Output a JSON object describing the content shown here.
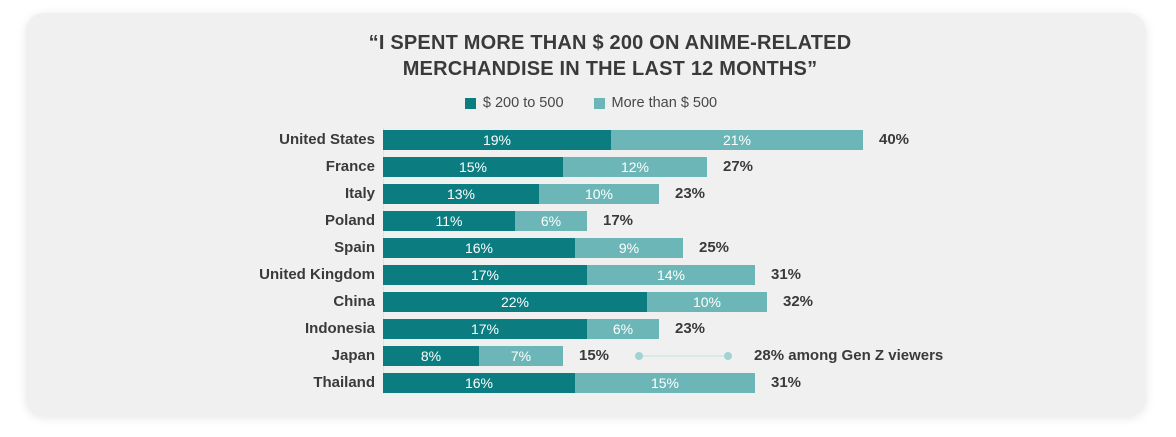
{
  "page": {
    "background": "#ffffff",
    "panel_background": "#f0f0f1"
  },
  "colors": {
    "text_dark": "#3b3a39",
    "bar_label_text": "#ffffff",
    "axis_line": "#e1e1e1",
    "annotation_dot": "#a3d2d3",
    "annotation_line": "#d7e9e9"
  },
  "chart_data": {
    "type": "bar",
    "orientation": "horizontal",
    "stacked": true,
    "title_line1": "“I SPENT MORE THAN $ 200 ON ANIME-RELATED",
    "title_line2": "MERCHANDISE IN THE LAST 12 MONTHS”",
    "legend_position": "top-center",
    "grid": false,
    "xlim": [
      0,
      45
    ],
    "value_suffix": "%",
    "legend": [
      {
        "label": "$ 200 to 500",
        "color": "#0b7c80"
      },
      {
        "label": "More than $ 500",
        "color": "#6db6b8"
      }
    ],
    "categories": [
      "United States",
      "France",
      "Italy",
      "Poland",
      "Spain",
      "United Kingdom",
      "China",
      "Indonesia",
      "Japan",
      "Thailand"
    ],
    "series": [
      {
        "name": "$ 200 to 500",
        "color": "#0b7c80",
        "values": [
          19,
          15,
          13,
          11,
          16,
          17,
          22,
          17,
          8,
          16
        ]
      },
      {
        "name": "More than $ 500",
        "color": "#6db6b8",
        "values": [
          21,
          12,
          10,
          6,
          9,
          14,
          10,
          6,
          7,
          15
        ]
      }
    ],
    "totals": [
      40,
      27,
      23,
      17,
      25,
      31,
      32,
      23,
      15,
      31
    ],
    "annotation": {
      "category": "Japan",
      "text": "28% among Gen Z viewers"
    }
  }
}
